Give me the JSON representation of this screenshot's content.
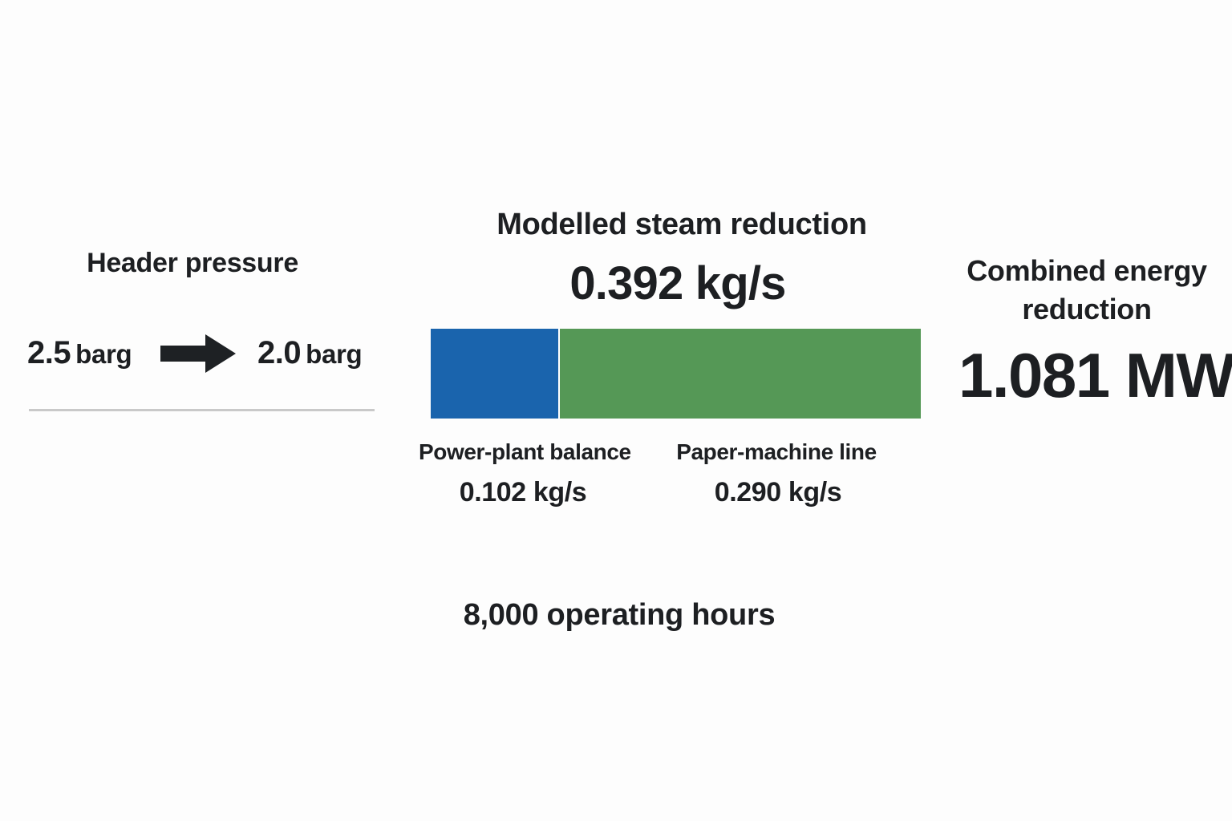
{
  "header_pressure": {
    "title": "Header pressure",
    "from_value": "2.5",
    "from_unit": "barg",
    "to_value": "2.0",
    "to_unit": "barg",
    "arrow_icon": "right-arrow-icon"
  },
  "steam_reduction": {
    "title": "Modelled steam reduction",
    "total": "0.392 kg/s",
    "segments": [
      {
        "label": "Power-plant balance",
        "value": "0.102 kg/s",
        "amount": 0.102,
        "color": "#1a64ad"
      },
      {
        "label": "Paper-machine line",
        "value": "0.290 kg/s",
        "amount": 0.29,
        "color": "#559856"
      }
    ]
  },
  "energy_reduction": {
    "title_line1": "Combined energy",
    "title_line2": "reduction",
    "value": "1.081 MW"
  },
  "footer": {
    "operating_hours": "8,000 operating hours"
  }
}
